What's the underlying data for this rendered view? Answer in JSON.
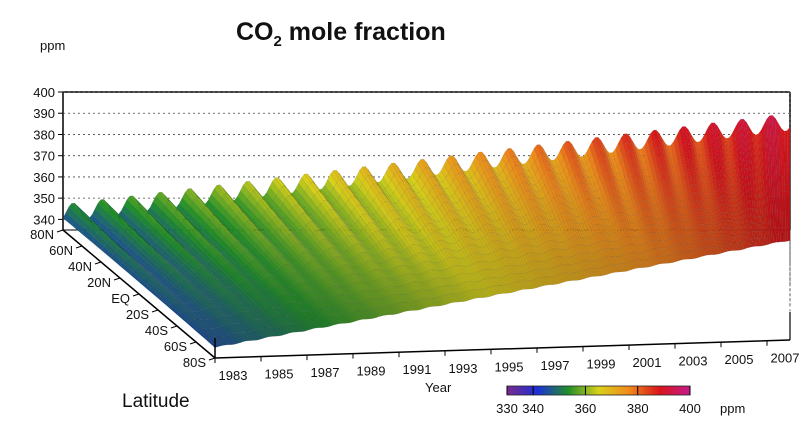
{
  "chart_data": {
    "type": "surface-3d",
    "title_main": "CO",
    "title_sub": "2",
    "title_rest": " mole fraction",
    "z_unit": "ppm",
    "z_ticks": [
      340,
      350,
      360,
      370,
      380,
      390,
      400
    ],
    "z_range": [
      335,
      400
    ],
    "x_label": "Year",
    "x_ticks": [
      "1983",
      "1985",
      "1987",
      "1989",
      "1991",
      "1993",
      "1995",
      "1997",
      "1999",
      "2001",
      "2003",
      "2005",
      "2007"
    ],
    "x_range": [
      1983,
      2008
    ],
    "y_label": "Latitude",
    "y_ticks": [
      "80N",
      "60N",
      "40N",
      "20N",
      "EQ",
      "20S",
      "40S",
      "60S",
      "80S"
    ],
    "colorbar": {
      "ticks": [
        330,
        340,
        360,
        380,
        400
      ],
      "unit": "ppm",
      "stops": [
        "#7a2a8a",
        "#1d2fd8",
        "#1f8f2a",
        "#d8d11a",
        "#f08a1a",
        "#d8141a",
        "#c51a8a"
      ]
    },
    "series": [
      {
        "latitude": "80N",
        "start_ppm": 343,
        "end_ppm": 386,
        "seasonal_amplitude_ppm": 8
      },
      {
        "latitude": "80S",
        "start_ppm": 340,
        "end_ppm": 382,
        "seasonal_amplitude_ppm": 0.5
      }
    ]
  }
}
